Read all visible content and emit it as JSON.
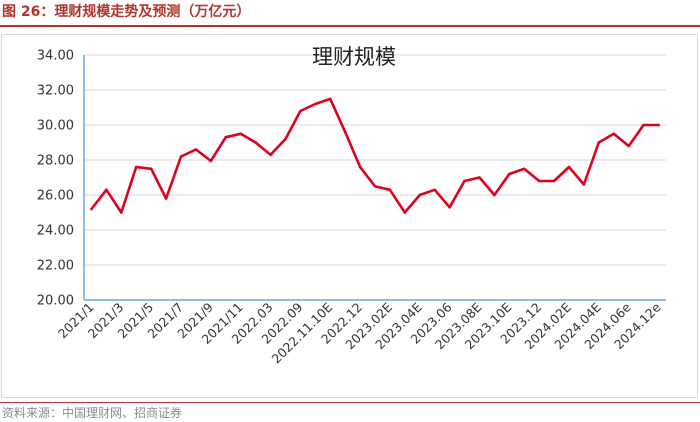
{
  "figure_title": "图 26：理财规模走势及预测（万亿元）",
  "source": "资料来源：中国理财网、招商证券",
  "colors": {
    "line": "#e0001b",
    "accent": "#b3342c",
    "axis": "#6aa8d8",
    "grid": "#d9d9d9"
  },
  "chart_data": {
    "type": "line",
    "title": "理财规模",
    "xlabel": "",
    "ylabel": "",
    "ylim": [
      20,
      34
    ],
    "yticks": [
      "20.00",
      "22.00",
      "24.00",
      "26.00",
      "28.00",
      "30.00",
      "32.00",
      "34.00"
    ],
    "grid": true,
    "x_tick_labels": [
      "2021/1",
      "2021/3",
      "2021/5",
      "2021/7",
      "2021/9",
      "2021/11",
      "2022.03",
      "2022.09",
      "2022.11.10E",
      "2022.12",
      "2023.02E",
      "2023.04E",
      "2023.06",
      "2023.08E",
      "2023.10E",
      "2023.12",
      "2024.02E",
      "2024.04E",
      "2024.06e",
      "2024.12e"
    ],
    "series": [
      {
        "values": [
          25.2,
          26.3,
          25.0,
          27.6,
          27.5,
          25.8,
          28.2,
          28.6,
          27.95,
          29.3,
          29.5,
          29.0,
          28.3,
          29.2,
          30.8,
          31.2,
          31.5,
          29.6,
          27.6,
          26.5,
          26.3,
          25.0,
          26.0,
          26.3,
          25.3,
          26.8,
          27.0,
          26.0,
          27.2,
          27.5,
          26.8,
          26.8,
          27.6,
          26.6,
          29.0,
          29.5,
          28.8,
          30.0,
          30.0
        ]
      }
    ]
  }
}
